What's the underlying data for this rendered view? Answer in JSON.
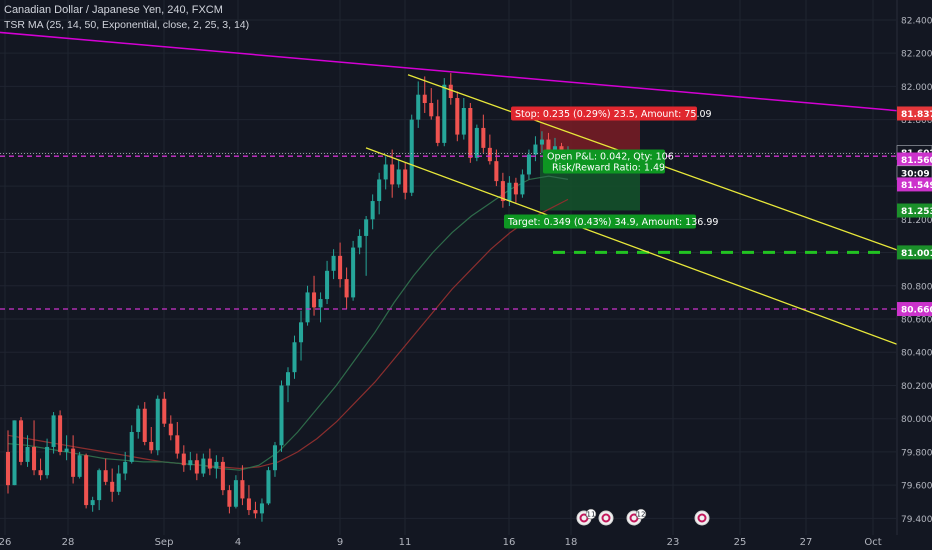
{
  "header": {
    "title": "Canadian Dollar / Japanese Yen, 240, FXCM",
    "indicator": "TSR MA (25, 14, 50, Exponential, close, 2, 25, 3, 14)"
  },
  "colors": {
    "background": "#131722",
    "grid": "#1f2430",
    "bull": "#26a69a",
    "bear": "#ef5350",
    "trendline": "#d400d4",
    "channel": "#e8e83a",
    "level": "#cc33cc",
    "target": "#22c322",
    "stop_zone": "#7a1c24",
    "profit_zone": "#14532a",
    "ma_fast": "#2e6b4a",
    "ma_slow": "#8b2e2e"
  },
  "chart_data": {
    "type": "candlestick",
    "symbol": "CADJPY",
    "timeframe": "240",
    "y_range": [
      79.3,
      82.52
    ],
    "y_ticks": [
      "82.400",
      "82.200",
      "82.000",
      "81.800",
      "81.600",
      "81.400",
      "81.200",
      "81.000",
      "80.800",
      "80.600",
      "80.400",
      "80.200",
      "80.000",
      "79.800",
      "79.600",
      "79.400"
    ],
    "x_labels": [
      "26",
      "28",
      "Sep",
      "4",
      "9",
      "11",
      "16",
      "18",
      "23",
      "25",
      "27",
      "Oct"
    ],
    "grid": true,
    "candles_ohlc": [
      [
        79.8,
        79.93,
        79.55,
        79.6
      ],
      [
        79.6,
        79.99,
        79.6,
        79.99
      ],
      [
        79.99,
        80.01,
        79.72,
        79.74
      ],
      [
        79.74,
        79.9,
        79.71,
        79.83
      ],
      [
        79.83,
        79.99,
        79.66,
        79.69
      ],
      [
        79.69,
        79.76,
        79.63,
        79.66
      ],
      [
        79.66,
        79.88,
        79.64,
        79.83
      ],
      [
        79.83,
        80.04,
        79.79,
        80.02
      ],
      [
        80.02,
        80.05,
        79.78,
        79.8
      ],
      [
        79.8,
        79.9,
        79.75,
        79.82
      ],
      [
        79.82,
        79.9,
        79.61,
        79.65
      ],
      [
        79.65,
        79.8,
        79.64,
        79.78
      ],
      [
        79.78,
        79.79,
        79.46,
        79.48
      ],
      [
        79.48,
        79.53,
        79.44,
        79.51
      ],
      [
        79.51,
        79.7,
        79.45,
        79.69
      ],
      [
        79.69,
        79.76,
        79.6,
        79.62
      ],
      [
        79.62,
        79.7,
        79.5,
        79.56
      ],
      [
        79.56,
        79.72,
        79.54,
        79.67
      ],
      [
        79.67,
        79.8,
        79.63,
        79.74
      ],
      [
        79.74,
        79.96,
        79.73,
        79.92
      ],
      [
        79.92,
        80.08,
        79.88,
        80.06
      ],
      [
        80.06,
        80.1,
        79.84,
        79.86
      ],
      [
        79.86,
        79.95,
        79.79,
        79.81
      ],
      [
        79.81,
        80.14,
        79.78,
        80.12
      ],
      [
        80.12,
        80.16,
        79.95,
        79.97
      ],
      [
        79.97,
        80.02,
        79.87,
        79.9
      ],
      [
        79.9,
        79.98,
        79.76,
        79.79
      ],
      [
        79.79,
        79.84,
        79.68,
        79.72
      ],
      [
        79.72,
        79.8,
        79.69,
        79.75
      ],
      [
        79.75,
        79.79,
        79.63,
        79.67
      ],
      [
        79.67,
        79.79,
        79.65,
        79.76
      ],
      [
        79.76,
        79.82,
        79.66,
        79.7
      ],
      [
        79.7,
        79.78,
        79.64,
        79.74
      ],
      [
        79.74,
        79.77,
        79.54,
        79.57
      ],
      [
        79.57,
        79.6,
        79.43,
        79.47
      ],
      [
        79.47,
        79.66,
        79.46,
        79.63
      ],
      [
        79.63,
        79.72,
        79.48,
        79.52
      ],
      [
        79.52,
        79.6,
        79.42,
        79.45
      ],
      [
        79.45,
        79.5,
        79.4,
        79.43
      ],
      [
        79.43,
        79.52,
        79.38,
        79.49
      ],
      [
        79.49,
        79.71,
        79.48,
        79.69
      ],
      [
        79.69,
        79.86,
        79.65,
        79.84
      ],
      [
        79.84,
        80.23,
        79.8,
        80.2
      ],
      [
        80.2,
        80.31,
        80.1,
        80.28
      ],
      [
        80.28,
        80.5,
        80.24,
        80.46
      ],
      [
        80.46,
        80.65,
        80.35,
        80.58
      ],
      [
        80.58,
        80.8,
        80.56,
        80.76
      ],
      [
        80.76,
        80.86,
        80.62,
        80.67
      ],
      [
        80.67,
        80.76,
        80.58,
        80.72
      ],
      [
        80.72,
        80.95,
        80.69,
        80.89
      ],
      [
        80.89,
        81.02,
        80.84,
        80.98
      ],
      [
        80.98,
        81.06,
        80.79,
        80.84
      ],
      [
        80.84,
        80.91,
        80.66,
        80.73
      ],
      [
        80.73,
        81.07,
        80.71,
        81.03
      ],
      [
        81.03,
        81.14,
        80.99,
        81.1
      ],
      [
        81.1,
        81.22,
        80.86,
        81.2
      ],
      [
        81.2,
        81.35,
        81.14,
        81.31
      ],
      [
        81.31,
        81.48,
        81.23,
        81.44
      ],
      [
        81.44,
        81.58,
        81.38,
        81.53
      ],
      [
        81.53,
        81.62,
        81.33,
        81.41
      ],
      [
        81.41,
        81.56,
        81.39,
        81.5
      ],
      [
        81.5,
        81.54,
        81.32,
        81.36
      ],
      [
        81.36,
        81.83,
        81.34,
        81.8
      ],
      [
        81.8,
        82.03,
        81.75,
        81.95
      ],
      [
        81.95,
        82.06,
        81.84,
        81.9
      ],
      [
        81.9,
        81.99,
        81.8,
        81.82
      ],
      [
        81.82,
        81.92,
        81.64,
        81.66
      ],
      [
        81.66,
        82.05,
        81.64,
        82.01
      ],
      [
        82.01,
        82.08,
        81.89,
        81.93
      ],
      [
        81.93,
        81.97,
        81.67,
        81.71
      ],
      [
        81.71,
        81.93,
        81.68,
        81.87
      ],
      [
        81.87,
        81.9,
        81.54,
        81.57
      ],
      [
        81.57,
        81.77,
        81.55,
        81.75
      ],
      [
        81.75,
        81.83,
        81.6,
        81.63
      ],
      [
        81.63,
        81.71,
        81.53,
        81.55
      ],
      [
        81.55,
        81.62,
        81.4,
        81.43
      ],
      [
        81.43,
        81.48,
        81.27,
        81.31
      ],
      [
        81.31,
        81.46,
        81.28,
        81.42
      ],
      [
        81.42,
        81.45,
        81.3,
        81.35
      ],
      [
        81.35,
        81.5,
        81.33,
        81.47
      ],
      [
        81.47,
        81.62,
        81.44,
        81.59
      ],
      [
        81.59,
        81.7,
        81.55,
        81.65
      ],
      [
        81.65,
        81.73,
        81.6,
        81.68
      ],
      [
        81.68,
        81.72,
        81.58,
        81.62
      ],
      [
        81.62,
        81.69,
        81.57,
        81.64
      ],
      [
        81.64,
        81.66,
        81.5,
        81.56
      ],
      [
        81.56,
        81.64,
        81.54,
        81.6
      ]
    ],
    "ma_fast": [
      79.85,
      79.84,
      79.82,
      79.8,
      79.78,
      79.76,
      79.75,
      79.74,
      79.74,
      79.73,
      79.72,
      79.7,
      79.69,
      79.72,
      79.8,
      79.92,
      80.06,
      80.2,
      80.36,
      80.52,
      80.7,
      80.86,
      81.0,
      81.12,
      81.22,
      81.3,
      81.38,
      81.44,
      81.46,
      81.44
    ],
    "ma_slow": [
      79.9,
      79.88,
      79.86,
      79.84,
      79.82,
      79.8,
      79.78,
      79.76,
      79.74,
      79.73,
      79.72,
      79.71,
      79.7,
      79.71,
      79.74,
      79.8,
      79.88,
      79.98,
      80.1,
      80.22,
      80.36,
      80.5,
      80.64,
      80.78,
      80.9,
      81.02,
      81.12,
      81.2,
      81.26,
      81.32
    ],
    "trendline_magenta": [
      [
        -10,
        82.33
      ],
      [
        1000,
        81.8
      ]
    ],
    "channel_upper": [
      [
        408,
        82.07
      ],
      [
        932,
        80.94
      ]
    ],
    "channel_lower": [
      [
        366,
        81.63
      ],
      [
        932,
        80.37
      ]
    ],
    "horizontal_levels": [
      {
        "price": 81.58,
        "style": "dashed",
        "color": "#cc33cc"
      },
      {
        "price": 80.66,
        "style": "dashed",
        "color": "#cc33cc"
      }
    ],
    "target_level": 81.001,
    "position": {
      "stop_label": "Stop: 0.235 (0.29%) 23.5, Amount: 75.09",
      "target_label": "Target: 0.349 (0.43%) 34.9, Amount: 136.99",
      "open_pl_label": "Open P&L: 0.042, Qty: 106",
      "risk_reward_label": "Risk/Reward Ratio: 1.49",
      "entry": 81.602,
      "stop": 81.837,
      "target": 81.253
    },
    "price_labels": [
      {
        "text": "81.837",
        "price": 81.837,
        "bg": "#e5373b",
        "fg": "#ffffff"
      },
      {
        "text": "81.602",
        "price": 81.602,
        "bg": "#131722",
        "fg": "#ffffff"
      },
      {
        "text": "81.560",
        "price": 81.56,
        "bg": "#cc33cc",
        "fg": "#ffffff"
      },
      {
        "text": "30:09",
        "price": 81.48,
        "bg": "#131722",
        "fg": "#ffffff"
      },
      {
        "text": "81.549",
        "price": 81.41,
        "bg": "#cc33cc",
        "fg": "#ffffff"
      },
      {
        "text": "81.253",
        "price": 81.253,
        "bg": "#1b8f2a",
        "fg": "#ffffff"
      },
      {
        "text": "81.001",
        "price": 81.001,
        "bg": "#1b8f2a",
        "fg": "#ffffff"
      },
      {
        "text": "80.660",
        "price": 80.66,
        "bg": "#cc33cc",
        "fg": "#ffffff"
      }
    ],
    "event_markers": [
      {
        "text": "11"
      },
      {
        "text": ""
      },
      {
        "text": "12"
      },
      {
        "text": ""
      }
    ]
  }
}
